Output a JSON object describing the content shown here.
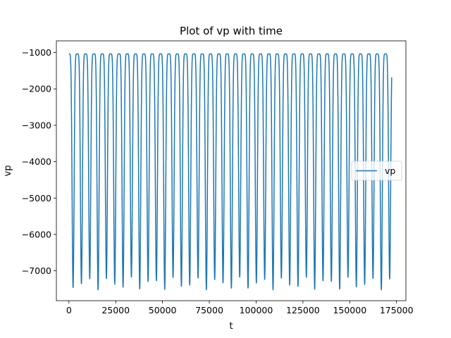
{
  "chart_data": {
    "type": "line",
    "title": "Plot of vp with time",
    "xlabel": "t",
    "ylabel": "vp",
    "xlim": [
      -6700,
      180000
    ],
    "ylim": [
      -7820,
      -680
    ],
    "x_ticks": [
      0,
      25000,
      50000,
      75000,
      100000,
      125000,
      150000,
      175000
    ],
    "x_tick_labels": [
      "0",
      "25000",
      "50000",
      "75000",
      "100000",
      "125000",
      "150000",
      "175000"
    ],
    "y_ticks": [
      -1000,
      -2000,
      -3000,
      -4000,
      -5000,
      -6000,
      -7000
    ],
    "y_tick_labels": [
      "−1000",
      "−2000",
      "−3000",
      "−4000",
      "−5000",
      "−6000",
      "−7000"
    ],
    "grid": false,
    "legend_position": "center-right",
    "series": [
      {
        "name": "vp",
        "color": "#1f77b4",
        "period": 4450,
        "peak": -1040,
        "trough_range": [
          -7520,
          -7170
        ],
        "x_end": 172400,
        "x_range": [
          0,
          172400
        ],
        "end_value": -1740
      }
    ]
  },
  "legend": {
    "label": "vp"
  }
}
